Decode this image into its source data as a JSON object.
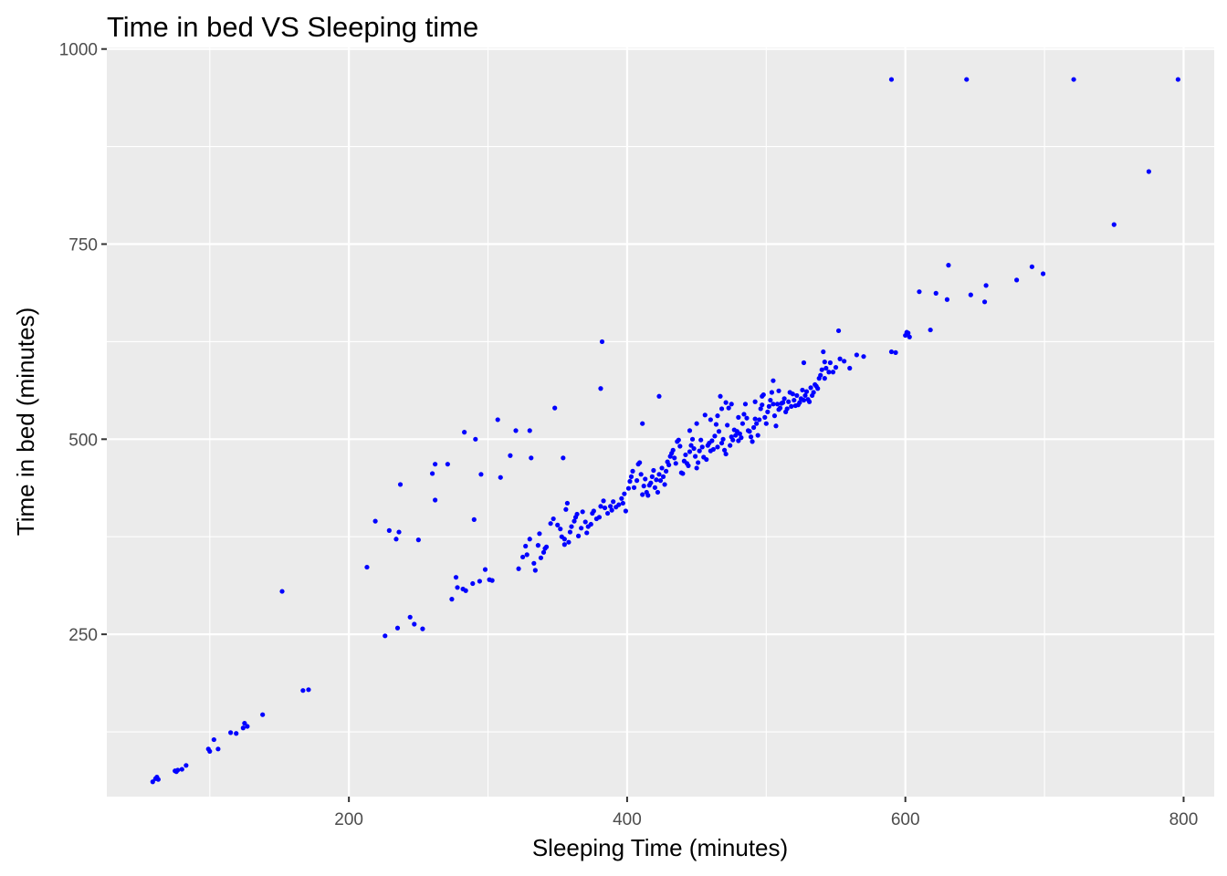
{
  "chart_data": {
    "type": "scatter",
    "title": "Time in bed VS Sleeping time",
    "xlabel": "Sleeping Time (minutes)",
    "ylabel": "Time in bed (minutes)",
    "xlim": [
      26,
      822
    ],
    "ylim": [
      42,
      1002
    ],
    "x_ticks": [
      200,
      400,
      600,
      800
    ],
    "y_ticks": [
      250,
      500,
      750,
      1000
    ],
    "x_tick_labels": [
      "200",
      "400",
      "600",
      "800"
    ],
    "y_tick_labels": [
      "250",
      "500",
      "750",
      "1000"
    ],
    "grid": true,
    "legend": "none",
    "colors": {
      "point": "#0000FF",
      "panel": "#EBEBEB",
      "grid": "#FFFFFF",
      "tick": "#333333"
    },
    "series": [
      {
        "points": [
          [
            59,
            61
          ],
          [
            61,
            65
          ],
          [
            62,
            67
          ],
          [
            63,
            64
          ],
          [
            75,
            75
          ],
          [
            76,
            74
          ],
          [
            77,
            76
          ],
          [
            80,
            77
          ],
          [
            83,
            82
          ],
          [
            99,
            103
          ],
          [
            100,
            100
          ],
          [
            103,
            115
          ],
          [
            106,
            103
          ],
          [
            115,
            124
          ],
          [
            119,
            123
          ],
          [
            124,
            130
          ],
          [
            125,
            136
          ],
          [
            127,
            132
          ],
          [
            138,
            147
          ],
          [
            152,
            305
          ],
          [
            167,
            178
          ],
          [
            171,
            179
          ],
          [
            213,
            336
          ],
          [
            219,
            395
          ],
          [
            229,
            383
          ],
          [
            234,
            372
          ],
          [
            236,
            381
          ],
          [
            237,
            442
          ],
          [
            244,
            272
          ],
          [
            247,
            263
          ],
          [
            250,
            371
          ],
          [
            253,
            257
          ],
          [
            235,
            258
          ],
          [
            226,
            248
          ],
          [
            260,
            456
          ],
          [
            262,
            468
          ],
          [
            262,
            422
          ],
          [
            271,
            468
          ],
          [
            274,
            295
          ],
          [
            278,
            310
          ],
          [
            277,
            323
          ],
          [
            282,
            308
          ],
          [
            284,
            306
          ],
          [
            289,
            315
          ],
          [
            283,
            509
          ],
          [
            290,
            397
          ],
          [
            291,
            500
          ],
          [
            294,
            318
          ],
          [
            295,
            455
          ],
          [
            298,
            333
          ],
          [
            301,
            320
          ],
          [
            303,
            319
          ],
          [
            307,
            525
          ],
          [
            309,
            451
          ],
          [
            316,
            479
          ],
          [
            320,
            511
          ],
          [
            330,
            511
          ],
          [
            331,
            476
          ],
          [
            348,
            540
          ],
          [
            354,
            476
          ],
          [
            381,
            565
          ],
          [
            382,
            625
          ],
          [
            411,
            520
          ],
          [
            423,
            555
          ],
          [
            322,
            334
          ],
          [
            325,
            349
          ],
          [
            327,
            363
          ],
          [
            328,
            352
          ],
          [
            330,
            372
          ],
          [
            333,
            341
          ],
          [
            334,
            332
          ],
          [
            336,
            364
          ],
          [
            337,
            379
          ],
          [
            338,
            348
          ],
          [
            340,
            355
          ],
          [
            341,
            360
          ],
          [
            342,
            362
          ],
          [
            345,
            392
          ],
          [
            347,
            398
          ],
          [
            350,
            390
          ],
          [
            352,
            385
          ],
          [
            353,
            375
          ],
          [
            355,
            365
          ],
          [
            355,
            372
          ],
          [
            356,
            410
          ],
          [
            357,
            418
          ],
          [
            358,
            368
          ],
          [
            359,
            381
          ],
          [
            360,
            388
          ],
          [
            362,
            395
          ],
          [
            363,
            400
          ],
          [
            364,
            404
          ],
          [
            365,
            376
          ],
          [
            367,
            386
          ],
          [
            368,
            407
          ],
          [
            370,
            394
          ],
          [
            371,
            380
          ],
          [
            372,
            388
          ],
          [
            374,
            391
          ],
          [
            375,
            405
          ],
          [
            376,
            408
          ],
          [
            378,
            398
          ],
          [
            380,
            400
          ],
          [
            381,
            414
          ],
          [
            383,
            421
          ],
          [
            384,
            412
          ],
          [
            386,
            405
          ],
          [
            388,
            414
          ],
          [
            389,
            409
          ],
          [
            390,
            420
          ],
          [
            392,
            413
          ],
          [
            394,
            416
          ],
          [
            396,
            424
          ],
          [
            397,
            418
          ],
          [
            398,
            430
          ],
          [
            399,
            408
          ],
          [
            401,
            437
          ],
          [
            402,
            446
          ],
          [
            403,
            452
          ],
          [
            404,
            459
          ],
          [
            405,
            438
          ],
          [
            407,
            447
          ],
          [
            408,
            468
          ],
          [
            409,
            470
          ],
          [
            410,
            455
          ],
          [
            411,
            429
          ],
          [
            412,
            440
          ],
          [
            413,
            449
          ],
          [
            414,
            432
          ],
          [
            415,
            428
          ],
          [
            416,
            441
          ],
          [
            417,
            444
          ],
          [
            418,
            452
          ],
          [
            419,
            460
          ],
          [
            420,
            438
          ],
          [
            421,
            448
          ],
          [
            422,
            432
          ],
          [
            423,
            455
          ],
          [
            424,
            447
          ],
          [
            425,
            463
          ],
          [
            426,
            452
          ],
          [
            427,
            442
          ],
          [
            428,
            459
          ],
          [
            429,
            471
          ],
          [
            430,
            467
          ],
          [
            431,
            478
          ],
          [
            432,
            482
          ],
          [
            433,
            486
          ],
          [
            434,
            476
          ],
          [
            435,
            469
          ],
          [
            436,
            497
          ],
          [
            437,
            499
          ],
          [
            438,
            491
          ],
          [
            439,
            457
          ],
          [
            440,
            456
          ],
          [
            441,
            472
          ],
          [
            442,
            480
          ],
          [
            443,
            469
          ],
          [
            444,
            466
          ],
          [
            445,
            484
          ],
          [
            446,
            492
          ],
          [
            447,
            500
          ],
          [
            448,
            488
          ],
          [
            449,
            478
          ],
          [
            450,
            463
          ],
          [
            451,
            470
          ],
          [
            452,
            485
          ],
          [
            453,
            499
          ],
          [
            454,
            490
          ],
          [
            455,
            477
          ],
          [
            456,
            531
          ],
          [
            457,
            474
          ],
          [
            458,
            492
          ],
          [
            459,
            495
          ],
          [
            460,
            485
          ],
          [
            461,
            498
          ],
          [
            462,
            487
          ],
          [
            463,
            504
          ],
          [
            464,
            519
          ],
          [
            465,
            490
          ],
          [
            466,
            510
          ],
          [
            467,
            555
          ],
          [
            468,
            495
          ],
          [
            469,
            500
          ],
          [
            470,
            486
          ],
          [
            471,
            481
          ],
          [
            472,
            518
          ],
          [
            473,
            540
          ],
          [
            474,
            492
          ],
          [
            475,
            503
          ],
          [
            476,
            499
          ],
          [
            477,
            512
          ],
          [
            478,
            505
          ],
          [
            479,
            510
          ],
          [
            480,
            498
          ],
          [
            481,
            507
          ],
          [
            482,
            502
          ],
          [
            483,
            520
          ],
          [
            484,
            532
          ],
          [
            485,
            545
          ],
          [
            486,
            527
          ],
          [
            487,
            511
          ],
          [
            488,
            510
          ],
          [
            489,
            503
          ],
          [
            490,
            497
          ],
          [
            491,
            515
          ],
          [
            492,
            526
          ],
          [
            493,
            520
          ],
          [
            494,
            505
          ],
          [
            495,
            525
          ],
          [
            496,
            539
          ],
          [
            497,
            544
          ],
          [
            498,
            557
          ],
          [
            499,
            528
          ],
          [
            500,
            520
          ],
          [
            501,
            535
          ],
          [
            502,
            542
          ],
          [
            503,
            550
          ],
          [
            504,
            560
          ],
          [
            505,
            545
          ],
          [
            506,
            530
          ],
          [
            507,
            517
          ],
          [
            508,
            545
          ],
          [
            509,
            538
          ],
          [
            510,
            540
          ],
          [
            511,
            546
          ],
          [
            512,
            547
          ],
          [
            513,
            552
          ],
          [
            514,
            535
          ],
          [
            515,
            539
          ],
          [
            516,
            548
          ],
          [
            517,
            560
          ],
          [
            518,
            542
          ],
          [
            519,
            558
          ],
          [
            520,
            550
          ],
          [
            521,
            543
          ],
          [
            522,
            556
          ],
          [
            523,
            544
          ],
          [
            524,
            547
          ],
          [
            525,
            552
          ],
          [
            526,
            563
          ],
          [
            527,
            550
          ],
          [
            528,
            556
          ],
          [
            529,
            561
          ],
          [
            530,
            551
          ],
          [
            531,
            548
          ],
          [
            532,
            566
          ],
          [
            533,
            556
          ],
          [
            534,
            560
          ],
          [
            535,
            570
          ],
          [
            536,
            568
          ],
          [
            537,
            565
          ],
          [
            538,
            578
          ],
          [
            539,
            582
          ],
          [
            540,
            589
          ],
          [
            541,
            612
          ],
          [
            542,
            599
          ],
          [
            543,
            591
          ],
          [
            545,
            586
          ],
          [
            546,
            598
          ],
          [
            548,
            586
          ],
          [
            550,
            592
          ],
          [
            552,
            639
          ],
          [
            553,
            603
          ],
          [
            556,
            600
          ],
          [
            560,
            591
          ],
          [
            565,
            608
          ],
          [
            570,
            606
          ],
          [
            542,
            578
          ],
          [
            465,
            530
          ],
          [
            460,
            525
          ],
          [
            450,
            520
          ],
          [
            445,
            511
          ],
          [
            471,
            547
          ],
          [
            468,
            539
          ],
          [
            492,
            548
          ],
          [
            505,
            575
          ],
          [
            509,
            562
          ],
          [
            527,
            598
          ],
          [
            497,
            555
          ],
          [
            475,
            545
          ],
          [
            480,
            528
          ],
          [
            590,
            612
          ],
          [
            593,
            611
          ],
          [
            600,
            633
          ],
          [
            601,
            637
          ],
          [
            602,
            636
          ],
          [
            603,
            631
          ],
          [
            610,
            689
          ],
          [
            618,
            640
          ],
          [
            622,
            687
          ],
          [
            630,
            679
          ],
          [
            631,
            723
          ],
          [
            647,
            685
          ],
          [
            657,
            676
          ],
          [
            658,
            697
          ],
          [
            680,
            704
          ],
          [
            691,
            721
          ],
          [
            699,
            712
          ],
          [
            590,
            961
          ],
          [
            644,
            961
          ],
          [
            721,
            961
          ],
          [
            796,
            961
          ],
          [
            750,
            775
          ],
          [
            775,
            843
          ]
        ]
      }
    ]
  }
}
